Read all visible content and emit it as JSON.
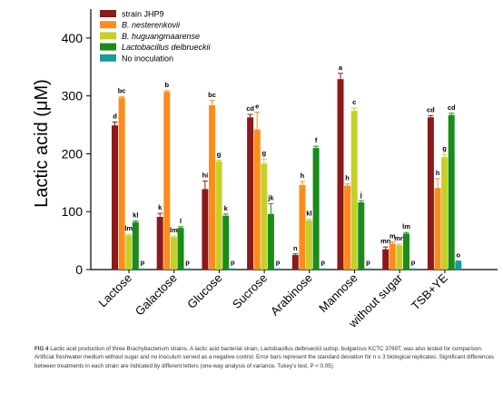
{
  "chart_data": {
    "type": "bar",
    "ylabel": "Lactic acid (μM)",
    "ylim": [
      0,
      450
    ],
    "yticks": [
      0,
      100,
      200,
      300,
      400
    ],
    "grid": false,
    "legend_placement": "top-left",
    "categories": [
      "Lactose",
      "Galactose",
      "Glucose",
      "Sucrose",
      "Arabinose",
      "Mannose",
      "without sugar",
      "TSB+YE"
    ],
    "series": [
      {
        "name": "strain JHP9",
        "color": "#8b1a1a",
        "values": [
          249,
          91,
          139,
          263,
          25,
          329,
          35,
          263
        ],
        "errors": [
          6,
          6,
          14,
          5,
          2,
          10,
          4,
          3
        ],
        "letters": [
          "d",
          "k",
          "hi",
          "cd",
          "n",
          "a",
          "mn",
          "cd"
        ]
      },
      {
        "name": "B. nesterenkovii",
        "color": "#ff8c1a",
        "values": [
          297,
          307,
          284,
          242,
          146,
          145,
          45,
          141
        ],
        "errors": [
          2,
          2,
          8,
          30,
          6,
          3,
          3,
          16
        ],
        "letters": [
          "bc",
          "b",
          "bc",
          "e",
          "h",
          "h",
          "m",
          "h"
        ]
      },
      {
        "name": "B. huguangmaarense",
        "color": "#c5cf2a",
        "values": [
          59,
          56,
          187,
          183,
          85,
          274,
          42,
          194
        ],
        "errors": [
          2,
          2,
          2,
          8,
          2,
          5,
          2,
          5
        ],
        "letters": [
          "lm",
          "lm",
          "g",
          "g",
          "kl",
          "c",
          "mn",
          "g"
        ]
      },
      {
        "name": "Lactobacillus delbrueckii",
        "color": "#1a8c1a",
        "values": [
          82,
          72,
          93,
          96,
          210,
          116,
          62,
          267
        ],
        "errors": [
          2,
          2,
          3,
          18,
          3,
          3,
          2,
          3
        ],
        "letters": [
          "kl",
          "l",
          "k",
          "jk",
          "f",
          "j",
          "lm",
          "cd"
        ]
      },
      {
        "name": "No inoculation",
        "color": "#1a9a9a",
        "values": [
          2,
          2,
          2,
          2,
          2,
          2,
          2,
          14
        ],
        "errors": [
          0,
          0,
          0,
          0,
          0,
          0,
          0,
          1
        ],
        "letters": [
          "p",
          "p",
          "p",
          "p",
          "p",
          "p",
          "p",
          "o"
        ]
      }
    ]
  },
  "caption": {
    "label": "FIG 4",
    "text": "Lactic acid production of three Brachybacterium strains. A lactic acid bacterial strain, Lactobacillus delbrueckii subsp. bulgaricus KCTC 3769T, was also tested for comparison. Artificial freshwater medium without sugar and no inoculum served as a negative control. Error bars represent the standard deviation for n ≥ 3 biological replicates. Significant differences between treatments in each strain are indicated by different letters (one-way analysis of variance, Tukey’s test, P < 0.05)."
  }
}
